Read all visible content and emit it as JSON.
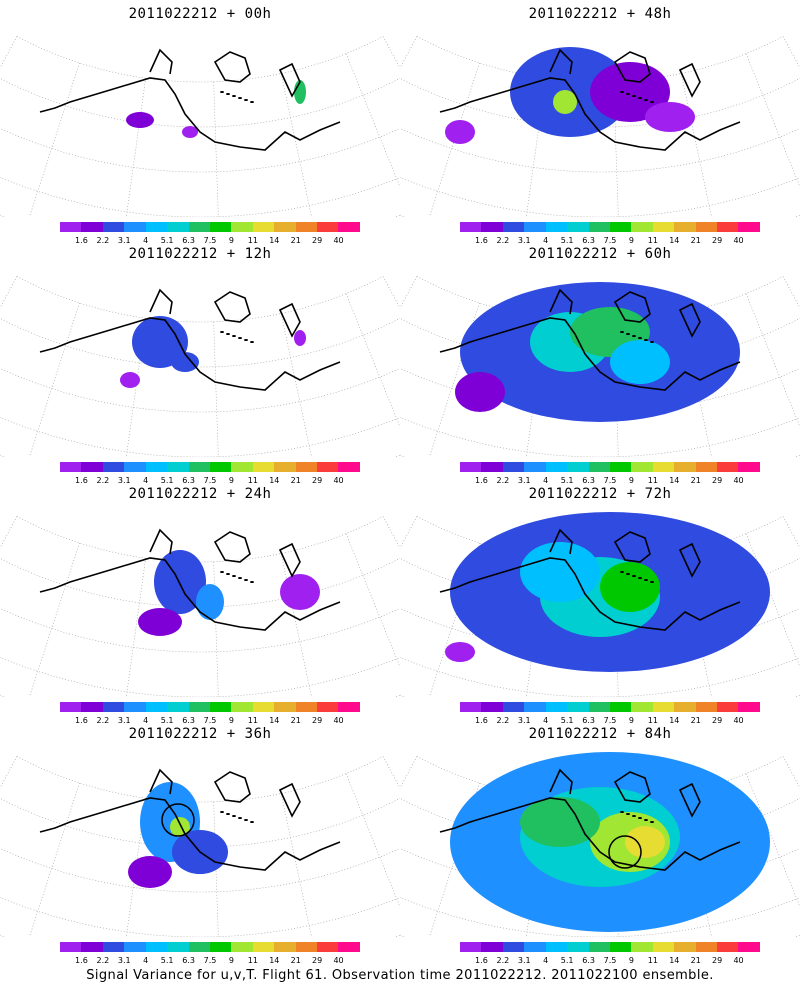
{
  "caption": "Signal Variance for u,v,T. Flight 61. Observation time 2011022212. 2011022100 ensemble.",
  "panels": [
    {
      "title": "2011022212 + 00h",
      "level": 0
    },
    {
      "title": "2011022212 + 48h",
      "level": 4
    },
    {
      "title": "2011022212 + 12h",
      "level": 1
    },
    {
      "title": "2011022212 + 60h",
      "level": 5
    },
    {
      "title": "2011022212 + 24h",
      "level": 2
    },
    {
      "title": "2011022212 + 72h",
      "level": 6
    },
    {
      "title": "2011022212 + 36h",
      "level": 3
    },
    {
      "title": "2011022212 + 84h",
      "level": 7
    }
  ],
  "colorbar": {
    "labels": [
      "1.6",
      "2.2",
      "3.1",
      "4",
      "5.1",
      "6.3",
      "7.5",
      "9",
      "11",
      "14",
      "21",
      "29",
      "40"
    ],
    "colors": [
      "#a020f0",
      "#7f00d6",
      "#2f4be0",
      "#1e90ff",
      "#00bfff",
      "#00ced1",
      "#20c060",
      "#00c800",
      "#a0e632",
      "#e6dc32",
      "#e6af2d",
      "#f08228",
      "#fa3c3c",
      "#ff0a8c"
    ]
  }
}
